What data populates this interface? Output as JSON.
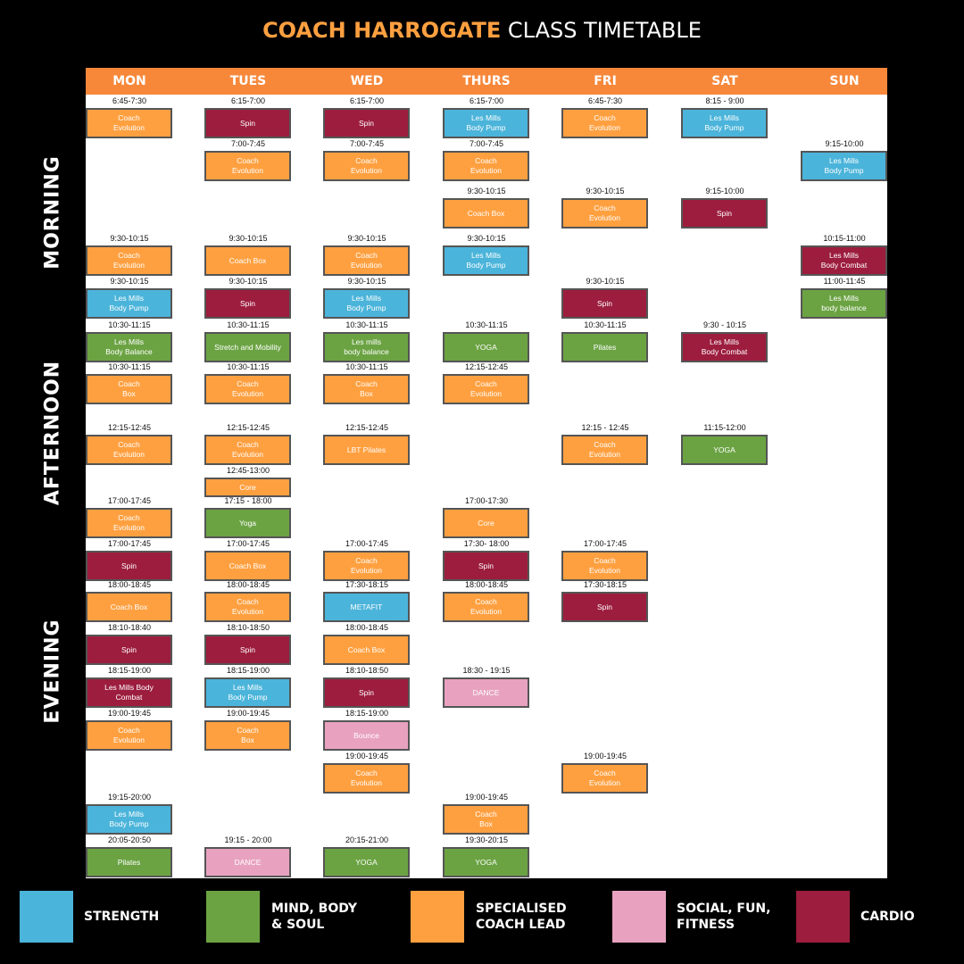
{
  "title": {
    "brand": "COACH HARROGATE",
    "rest": "CLASS TIMETABLE"
  },
  "days": [
    "MON",
    "TUES",
    "WED",
    "THURS",
    "FRI",
    "SAT",
    "SUN"
  ],
  "sections": [
    "MORNING",
    "AFTERNOON",
    "EVENING"
  ],
  "colors": {
    "strength": "#4BB4DA",
    "mind": "#6BA343",
    "coach": "#FFA040",
    "social": "#E8A2C0",
    "cardio": "#9C1D3D",
    "header": "#F7883A"
  },
  "legend": [
    {
      "cat": "strength",
      "label": "STRENGTH"
    },
    {
      "cat": "mind",
      "label": "MIND, BODY\n& SOUL"
    },
    {
      "cat": "coach",
      "label": "SPECIALISED\nCOACH LEAD"
    },
    {
      "cat": "social",
      "label": "SOCIAL, FUN,\nFITNESS"
    },
    {
      "cat": "cardio",
      "label": "CARDIO"
    }
  ],
  "classes": [
    {
      "day": 0,
      "time": "6:45-7:30",
      "name": "Coach\nEvolution",
      "cat": "coach"
    },
    {
      "day": 0,
      "time": "9:30-10:15",
      "name": "Coach\nEvolution",
      "cat": "coach"
    },
    {
      "day": 0,
      "time": "9:30-10:15",
      "name": "Les Mills\nBody Pump",
      "cat": "strength"
    },
    {
      "day": 0,
      "time": "10:30-11:15",
      "name": "Les Mills\nBody Balance",
      "cat": "mind"
    },
    {
      "day": 0,
      "time": "10:30-11:15",
      "name": "Coach\nBox",
      "cat": "coach"
    },
    {
      "day": 0,
      "time": "12:15-12:45",
      "name": "Coach\nEvolution",
      "cat": "coach"
    },
    {
      "day": 0,
      "time": "17:00-17:45",
      "name": "Coach\nEvolution",
      "cat": "coach"
    },
    {
      "day": 0,
      "time": "17:00-17:45",
      "name": "Spin",
      "cat": "cardio"
    },
    {
      "day": 0,
      "time": "18:00-18:45",
      "name": "Coach Box",
      "cat": "coach"
    },
    {
      "day": 0,
      "time": "18:10-18:40",
      "name": "Spin",
      "cat": "cardio"
    },
    {
      "day": 0,
      "time": "18:15-19:00",
      "name": "Les Mills Body\nCombat",
      "cat": "cardio"
    },
    {
      "day": 0,
      "time": "19:00-19:45",
      "name": "Coach\nEvolution",
      "cat": "coach"
    },
    {
      "day": 0,
      "time": "19:15-20:00",
      "name": "Les Mills\nBody Pump",
      "cat": "strength"
    },
    {
      "day": 0,
      "time": "20:05-20:50",
      "name": "Pilates",
      "cat": "mind"
    },
    {
      "day": 1,
      "time": "6:15-7:00",
      "name": "Spin",
      "cat": "cardio"
    },
    {
      "day": 1,
      "time": "7:00-7:45",
      "name": "Coach\nEvolution",
      "cat": "coach"
    },
    {
      "day": 1,
      "time": "9:30-10:15",
      "name": "Coach Box",
      "cat": "coach"
    },
    {
      "day": 1,
      "time": "9:30-10:15",
      "name": "Spin",
      "cat": "cardio"
    },
    {
      "day": 1,
      "time": "10:30-11:15",
      "name": "Stretch and Mobility",
      "cat": "mind"
    },
    {
      "day": 1,
      "time": "10:30-11:15",
      "name": "Coach\nEvolution",
      "cat": "coach"
    },
    {
      "day": 1,
      "time": "12:15-12:45",
      "name": "Coach\nEvolution",
      "cat": "coach"
    },
    {
      "day": 1,
      "time": "12:45-13:00",
      "name": "Core",
      "cat": "coach"
    },
    {
      "day": 1,
      "time": "17:15 - 18:00",
      "name": "Yoga",
      "cat": "mind"
    },
    {
      "day": 1,
      "time": "17:00-17:45",
      "name": "Coach Box",
      "cat": "coach"
    },
    {
      "day": 1,
      "time": "18:00-18:45",
      "name": "Coach\nEvolution",
      "cat": "coach"
    },
    {
      "day": 1,
      "time": "18:10-18:50",
      "name": "Spin",
      "cat": "cardio"
    },
    {
      "day": 1,
      "time": "18:15-19:00",
      "name": "Les Mills\nBody Pump",
      "cat": "strength"
    },
    {
      "day": 1,
      "time": "19:00-19:45",
      "name": "Coach\nBox",
      "cat": "coach"
    },
    {
      "day": 1,
      "time": "19:15 - 20:00",
      "name": "DANCE",
      "cat": "social"
    },
    {
      "day": 2,
      "time": "6:15-7:00",
      "name": "Spin",
      "cat": "cardio"
    },
    {
      "day": 2,
      "time": "7:00-7:45",
      "name": "Coach\nEvolution",
      "cat": "coach"
    },
    {
      "day": 2,
      "time": "9:30-10:15",
      "name": "Coach\nEvolution",
      "cat": "coach"
    },
    {
      "day": 2,
      "time": "9:30-10:15",
      "name": "Les Mills\nBody Pump",
      "cat": "strength"
    },
    {
      "day": 2,
      "time": "10:30-11:15",
      "name": "Les mills\nbody balance",
      "cat": "mind"
    },
    {
      "day": 2,
      "time": "10:30-11:15",
      "name": "Coach\nBox",
      "cat": "coach"
    },
    {
      "day": 2,
      "time": "12:15-12:45",
      "name": "LBT Pilates",
      "cat": "coach"
    },
    {
      "day": 2,
      "time": "17:00-17:45",
      "name": "Coach\nEvolution",
      "cat": "coach"
    },
    {
      "day": 2,
      "time": "17:30-18:15",
      "name": "METAFIT",
      "cat": "strength"
    },
    {
      "day": 2,
      "time": "18:00-18:45",
      "name": "Coach Box",
      "cat": "coach"
    },
    {
      "day": 2,
      "time": "18:10-18:50",
      "name": "Spin",
      "cat": "cardio"
    },
    {
      "day": 2,
      "time": "18:15-19:00",
      "name": "Bounce",
      "cat": "social"
    },
    {
      "day": 2,
      "time": "19:00-19:45",
      "name": "Coach\nEvolution",
      "cat": "coach"
    },
    {
      "day": 2,
      "time": "20:15-21:00",
      "name": "YOGA",
      "cat": "mind"
    },
    {
      "day": 3,
      "time": "6:15-7:00",
      "name": "Les Mills\nBody Pump",
      "cat": "strength"
    },
    {
      "day": 3,
      "time": "7:00-7:45",
      "name": "Coach\nEvolution",
      "cat": "coach"
    },
    {
      "day": 3,
      "time": "9:30-10:15",
      "name": "Coach Box",
      "cat": "coach"
    },
    {
      "day": 3,
      "time": "9:30-10:15",
      "name": "Les Mills\nBody Pump",
      "cat": "strength"
    },
    {
      "day": 3,
      "time": "10:30-11:15",
      "name": "YOGA",
      "cat": "mind"
    },
    {
      "day": 3,
      "time": "12:15-12:45",
      "name": "Coach\nEvolution",
      "cat": "coach"
    },
    {
      "day": 3,
      "time": "17:00-17:30",
      "name": "Core",
      "cat": "coach"
    },
    {
      "day": 3,
      "time": "17:30- 18:00",
      "name": "Spin",
      "cat": "cardio"
    },
    {
      "day": 3,
      "time": "18:00-18:45",
      "name": "Coach\nEvolution",
      "cat": "coach"
    },
    {
      "day": 3,
      "time": "18:30 - 19:15",
      "name": "DANCE",
      "cat": "social"
    },
    {
      "day": 3,
      "time": "19:00-19:45",
      "name": "Coach\nBox",
      "cat": "coach"
    },
    {
      "day": 3,
      "time": "19:30-20:15",
      "name": "YOGA",
      "cat": "mind"
    },
    {
      "day": 4,
      "time": "6:45-7:30",
      "name": "Coach\nEvolution",
      "cat": "coach"
    },
    {
      "day": 4,
      "time": "9:30-10:15",
      "name": "Coach\nEvolution",
      "cat": "coach"
    },
    {
      "day": 4,
      "time": "9:30-10:15",
      "name": "Spin",
      "cat": "cardio"
    },
    {
      "day": 4,
      "time": "10:30-11:15",
      "name": "Pilates",
      "cat": "mind"
    },
    {
      "day": 4,
      "time": "12:15 - 12:45",
      "name": "Coach\nEvolution",
      "cat": "coach"
    },
    {
      "day": 4,
      "time": "17:00-17:45",
      "name": "Coach\nEvolution",
      "cat": "coach"
    },
    {
      "day": 4,
      "time": "17:30-18:15",
      "name": "Spin",
      "cat": "cardio"
    },
    {
      "day": 4,
      "time": "19:00-19:45",
      "name": "Coach\nEvolution",
      "cat": "coach"
    },
    {
      "day": 5,
      "time": "8:15 - 9:00",
      "name": "Les Mills\nBody Pump",
      "cat": "strength"
    },
    {
      "day": 5,
      "time": "9:15-10:00",
      "name": "Spin",
      "cat": "cardio"
    },
    {
      "day": 5,
      "time": "9:30 - 10:15",
      "name": "Les Mills\nBody Combat",
      "cat": "cardio"
    },
    {
      "day": 5,
      "time": "11:15-12:00",
      "name": "YOGA",
      "cat": "mind"
    },
    {
      "day": 6,
      "time": "9:15-10:00",
      "name": "Les Mills\nBody Pump",
      "cat": "strength"
    },
    {
      "day": 6,
      "time": "10:15-11:00",
      "name": "Les Mills\nBody Combat",
      "cat": "cardio"
    },
    {
      "day": 6,
      "time": "11:00-11:45",
      "name": "Les Mills\nbody balance",
      "cat": "mind"
    }
  ]
}
